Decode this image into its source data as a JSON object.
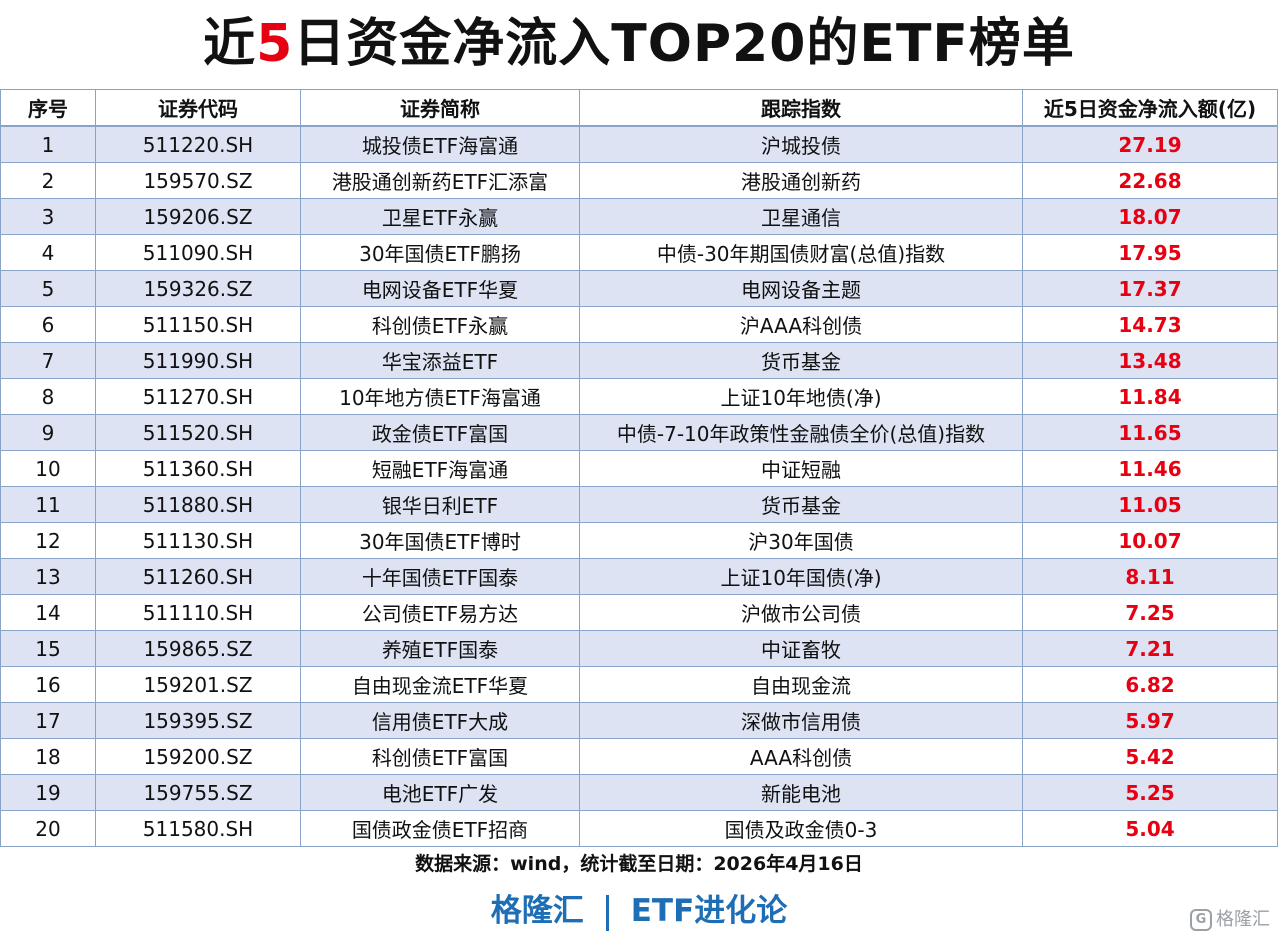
{
  "title": {
    "prefix": "近",
    "highlight": "5",
    "suffix": "日资金净流入TOP20的ETF榜单"
  },
  "table": {
    "headers": [
      "序号",
      "证券代码",
      "证券简称",
      "跟踪指数",
      "近5日资金净流入额(亿)"
    ],
    "rows": [
      [
        "1",
        "511220.SH",
        "城投债ETF海富通",
        "沪城投债",
        "27.19"
      ],
      [
        "2",
        "159570.SZ",
        "港股通创新药ETF汇添富",
        "港股通创新药",
        "22.68"
      ],
      [
        "3",
        "159206.SZ",
        "卫星ETF永赢",
        "卫星通信",
        "18.07"
      ],
      [
        "4",
        "511090.SH",
        "30年国债ETF鹏扬",
        "中债-30年期国债财富(总值)指数",
        "17.95"
      ],
      [
        "5",
        "159326.SZ",
        "电网设备ETF华夏",
        "电网设备主题",
        "17.37"
      ],
      [
        "6",
        "511150.SH",
        "科创债ETF永赢",
        "沪AAA科创债",
        "14.73"
      ],
      [
        "7",
        "511990.SH",
        "华宝添益ETF",
        "货币基金",
        "13.48"
      ],
      [
        "8",
        "511270.SH",
        "10年地方债ETF海富通",
        "上证10年地债(净)",
        "11.84"
      ],
      [
        "9",
        "511520.SH",
        "政金债ETF富国",
        "中债-7-10年政策性金融债全价(总值)指数",
        "11.65"
      ],
      [
        "10",
        "511360.SH",
        "短融ETF海富通",
        "中证短融",
        "11.46"
      ],
      [
        "11",
        "511880.SH",
        "银华日利ETF",
        "货币基金",
        "11.05"
      ],
      [
        "12",
        "511130.SH",
        "30年国债ETF博时",
        "沪30年国债",
        "10.07"
      ],
      [
        "13",
        "511260.SH",
        "十年国债ETF国泰",
        "上证10年国债(净)",
        "8.11"
      ],
      [
        "14",
        "511110.SH",
        "公司债ETF易方达",
        "沪做市公司债",
        "7.25"
      ],
      [
        "15",
        "159865.SZ",
        "养殖ETF国泰",
        "中证畜牧",
        "7.21"
      ],
      [
        "16",
        "159201.SZ",
        "自由现金流ETF华夏",
        "自由现金流",
        "6.82"
      ],
      [
        "17",
        "159395.SZ",
        "信用债ETF大成",
        "深做市信用债",
        "5.97"
      ],
      [
        "18",
        "159200.SZ",
        "科创债ETF富国",
        "AAA科创债",
        "5.42"
      ],
      [
        "19",
        "159755.SZ",
        "电池ETF广发",
        "新能电池",
        "5.25"
      ],
      [
        "20",
        "511580.SH",
        "国债政金债ETF招商",
        "国债及政金债0-3",
        "5.04"
      ]
    ]
  },
  "source": "数据来源：wind，统计截至日期：2026年4月16日",
  "footer": {
    "left": "格隆汇",
    "right": "ETF进化论"
  },
  "watermark": {
    "logo_letter": "G",
    "text": "格隆汇"
  },
  "colors": {
    "highlight": "#e60012",
    "stripe": "#dde3f3",
    "footer": "#1e6eb5"
  }
}
